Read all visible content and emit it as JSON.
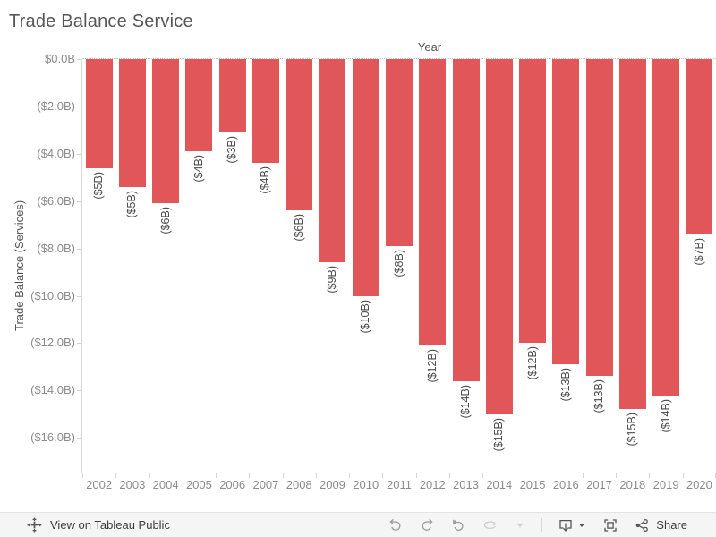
{
  "title": "Trade Balance Service",
  "chart_data": {
    "type": "bar",
    "title": "Trade Balance Service",
    "xlabel": "Year",
    "ylabel": "Trade Balance (Services)",
    "categories": [
      "2002",
      "2003",
      "2004",
      "2005",
      "2006",
      "2007",
      "2008",
      "2009",
      "2010",
      "2011",
      "2012",
      "2013",
      "2014",
      "2015",
      "2016",
      "2017",
      "2018",
      "2019",
      "2020"
    ],
    "values": [
      -4.6,
      -5.4,
      -6.1,
      -3.9,
      -3.1,
      -4.4,
      -6.4,
      -8.6,
      -10.0,
      -7.9,
      -12.1,
      -13.6,
      -15.0,
      -12.0,
      -12.9,
      -13.4,
      -14.8,
      -14.2,
      -7.4
    ],
    "bar_labels": [
      "($5B)",
      "($5B)",
      "($6B)",
      "($4B)",
      "($3B)",
      "($4B)",
      "($6B)",
      "($9B)",
      "($10B)",
      "($8B)",
      "($12B)",
      "($14B)",
      "($15B)",
      "($12B)",
      "($13B)",
      "($13B)",
      "($15B)",
      "($14B)",
      "($7B)"
    ],
    "y_ticks": [
      {
        "value": 0,
        "label": "$0.0B"
      },
      {
        "value": -2,
        "label": "($2.0B)"
      },
      {
        "value": -4,
        "label": "($4.0B)"
      },
      {
        "value": -6,
        "label": "($6.0B)"
      },
      {
        "value": -8,
        "label": "($8.0B)"
      },
      {
        "value": -10,
        "label": "($10.0B)"
      },
      {
        "value": -12,
        "label": "($12.0B)"
      },
      {
        "value": -14,
        "label": "($14.0B)"
      },
      {
        "value": -16,
        "label": "($16.0B)"
      }
    ],
    "ylim": [
      -17.5,
      0
    ],
    "bar_color": "#e15759",
    "grid": "dotted zero line only",
    "legend": "none"
  },
  "toolbar": {
    "view_on_label": "View on Tableau Public",
    "share_label": "Share",
    "icons": [
      "tableau-logo",
      "undo",
      "redo",
      "revert",
      "refresh",
      "caret-down",
      "download",
      "fullscreen",
      "share"
    ]
  },
  "colors": {
    "bar": "#e15759",
    "title_text": "#575757",
    "axis_text": "#8c8c8c",
    "bar_label_text": "#4a4a4a",
    "toolbar_bg": "#f5f5f5"
  }
}
